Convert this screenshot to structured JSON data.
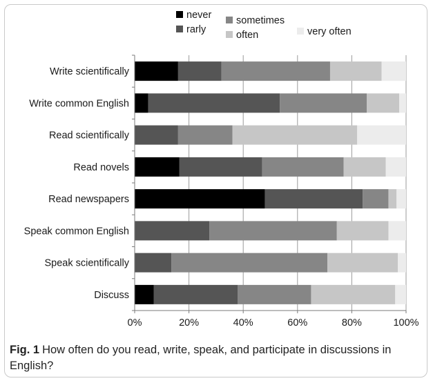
{
  "chart_data": {
    "type": "bar",
    "orientation": "horizontal",
    "stacked": true,
    "percent": true,
    "categories": [
      "Write scientifically",
      "Write common English",
      "Read scientifically",
      "Read novels",
      "Read newspapers",
      "Speak common English",
      "Speak scientifically",
      "Discuss"
    ],
    "series": [
      {
        "name": "never",
        "color": "#000000",
        "values": [
          16,
          5,
          0,
          16.5,
          48,
          0,
          0,
          7
        ]
      },
      {
        "name": "rarly",
        "color": "#555555",
        "values": [
          16,
          48.5,
          16,
          30.5,
          36,
          27.5,
          13.5,
          31
        ]
      },
      {
        "name": "sometimes",
        "color": "#868686",
        "values": [
          40,
          32,
          20,
          30,
          9.5,
          47,
          57.5,
          27
        ]
      },
      {
        "name": "often",
        "color": "#c6c6c6",
        "values": [
          19,
          12,
          46,
          15.5,
          3,
          19,
          26,
          31
        ]
      },
      {
        "name": "very often",
        "color": "#ececec",
        "values": [
          9,
          2.5,
          18,
          7.5,
          3.5,
          6.5,
          3,
          4
        ]
      }
    ],
    "xlim": [
      0,
      100
    ],
    "x_ticks": [
      "0%",
      "20%",
      "40%",
      "60%",
      "80%",
      "100%"
    ],
    "grid": true,
    "legend_position": "top"
  },
  "caption": {
    "label": "Fig. 1",
    "text": "How often do you read, write, speak, and participate in discussions in English?"
  }
}
